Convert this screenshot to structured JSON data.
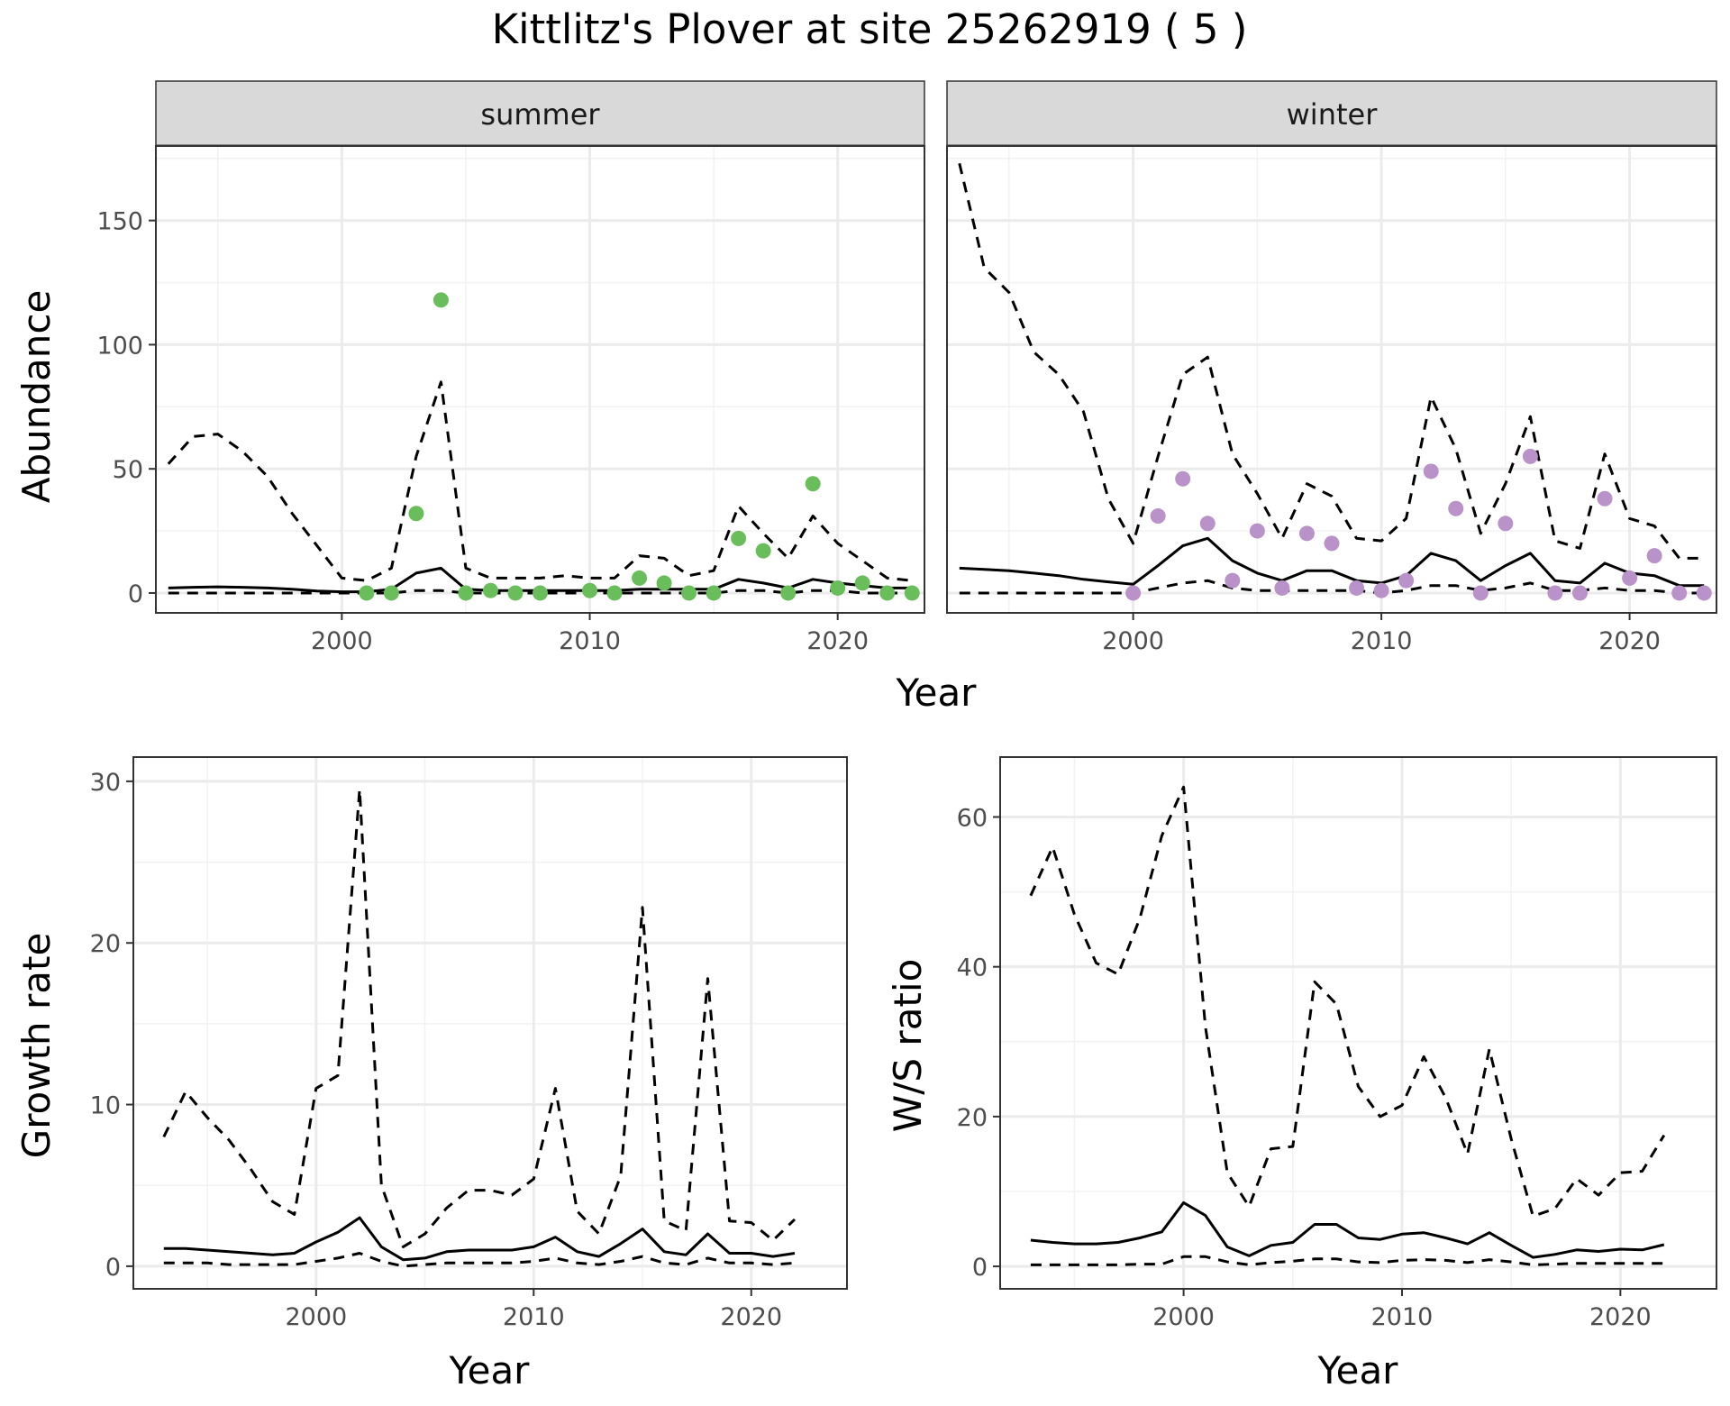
{
  "title": "Kittlitz's Plover at site 25262919 ( 5 )",
  "colors": {
    "summer": "#6abd5b",
    "winter": "#b892c8",
    "line": "#000000",
    "grid": "#ebebeb",
    "strip": "#d9d9d9"
  },
  "chart_data": [
    {
      "type": "line",
      "panel": "summer",
      "strip_label": "summer",
      "xlabel": "Year",
      "ylabel": "Abundance",
      "xlim": [
        1992.5,
        2023.5
      ],
      "ylim": [
        -8,
        180
      ],
      "xticks": [
        2000,
        2010,
        2020
      ],
      "yticks": [
        0,
        50,
        100,
        150
      ],
      "grid": true,
      "series": [
        {
          "role": "mean",
          "style": "solid",
          "x": [
            1993,
            1994,
            1995,
            1996,
            1997,
            1998,
            1999,
            2000,
            2001,
            2002,
            2003,
            2004,
            2005,
            2006,
            2007,
            2008,
            2009,
            2010,
            2011,
            2012,
            2013,
            2014,
            2015,
            2016,
            2017,
            2018,
            2019,
            2020,
            2021,
            2022,
            2023
          ],
          "y": [
            2,
            2.3,
            2.5,
            2.3,
            2,
            1.5,
            0.8,
            0.5,
            0.5,
            1.5,
            8,
            10,
            1.5,
            1,
            1,
            1,
            1,
            1,
            1,
            1.5,
            1.5,
            1.5,
            1.5,
            5.5,
            4,
            2,
            5.5,
            4,
            3,
            2,
            2
          ]
        },
        {
          "role": "lower",
          "style": "dashed",
          "x": [
            1993,
            1994,
            1995,
            1996,
            1997,
            1998,
            1999,
            2000,
            2001,
            2002,
            2003,
            2004,
            2005,
            2006,
            2007,
            2008,
            2009,
            2010,
            2011,
            2012,
            2013,
            2014,
            2015,
            2016,
            2017,
            2018,
            2019,
            2020,
            2021,
            2022,
            2023
          ],
          "y": [
            0,
            0,
            0,
            0,
            0,
            0,
            0,
            0,
            0,
            0,
            1,
            1,
            0,
            0,
            0,
            0,
            0,
            0,
            0,
            0,
            0,
            0,
            0,
            1,
            1,
            0,
            1,
            1,
            0,
            0,
            0
          ]
        },
        {
          "role": "upper",
          "style": "dashed",
          "x": [
            1993,
            1994,
            1995,
            1996,
            1997,
            1998,
            1999,
            2000,
            2001,
            2002,
            2003,
            2004,
            2005,
            2006,
            2007,
            2008,
            2009,
            2010,
            2011,
            2012,
            2013,
            2014,
            2015,
            2016,
            2017,
            2018,
            2019,
            2020,
            2021,
            2022,
            2023
          ],
          "y": [
            52,
            63,
            64,
            57,
            47,
            32,
            19,
            6,
            5,
            10,
            55,
            85,
            10,
            6,
            6,
            6,
            7,
            6,
            6,
            15,
            14,
            7,
            9,
            35,
            24,
            14,
            31,
            20,
            13,
            6,
            5
          ]
        }
      ],
      "points": {
        "x": [
          2001,
          2002,
          2003,
          2004,
          2005,
          2006,
          2007,
          2008,
          2010,
          2011,
          2012,
          2013,
          2014,
          2015,
          2016,
          2017,
          2018,
          2019,
          2020,
          2021,
          2022,
          2023
        ],
        "y": [
          0,
          0,
          32,
          118,
          0,
          1,
          0,
          0,
          1,
          0,
          6,
          4,
          0,
          0,
          22,
          17,
          0,
          44,
          2,
          4,
          0,
          0
        ]
      }
    },
    {
      "type": "line",
      "panel": "winter",
      "strip_label": "winter",
      "xlabel": "Year",
      "ylabel": "",
      "xlim": [
        1992.5,
        2023.5
      ],
      "ylim": [
        -8,
        180
      ],
      "xticks": [
        2000,
        2010,
        2020
      ],
      "yticks": [
        0,
        50,
        100,
        150
      ],
      "grid": true,
      "series": [
        {
          "role": "mean",
          "style": "solid",
          "x": [
            1993,
            1994,
            1995,
            1996,
            1997,
            1998,
            1999,
            2000,
            2001,
            2002,
            2003,
            2004,
            2005,
            2006,
            2007,
            2008,
            2009,
            2010,
            2011,
            2012,
            2013,
            2014,
            2015,
            2016,
            2017,
            2018,
            2019,
            2020,
            2021,
            2022,
            2023
          ],
          "y": [
            10,
            9.5,
            9,
            8,
            7,
            5.5,
            4.5,
            3.5,
            11,
            19,
            22,
            13,
            8,
            5,
            9,
            9,
            5,
            4,
            7,
            16,
            13,
            5,
            11,
            16,
            5,
            4,
            12,
            8,
            7,
            3,
            3
          ]
        },
        {
          "role": "lower",
          "style": "dashed",
          "x": [
            1993,
            1994,
            1995,
            1996,
            1997,
            1998,
            1999,
            2000,
            2001,
            2002,
            2003,
            2004,
            2005,
            2006,
            2007,
            2008,
            2009,
            2010,
            2011,
            2012,
            2013,
            2014,
            2015,
            2016,
            2017,
            2018,
            2019,
            2020,
            2021,
            2022,
            2023
          ],
          "y": [
            0,
            0,
            0,
            0,
            0,
            0,
            0,
            0,
            2,
            4,
            5,
            2,
            1,
            1,
            1,
            1,
            1,
            0,
            1,
            3,
            3,
            1,
            2,
            4,
            1,
            1,
            2,
            1,
            1,
            0,
            0
          ]
        },
        {
          "role": "upper",
          "style": "dashed",
          "x": [
            1993,
            1994,
            1995,
            1996,
            1997,
            1998,
            1999,
            2000,
            2001,
            2002,
            2003,
            2004,
            2005,
            2006,
            2007,
            2008,
            2009,
            2010,
            2011,
            2012,
            2013,
            2014,
            2015,
            2016,
            2017,
            2018,
            2019,
            2020,
            2021,
            2022,
            2023
          ],
          "y": [
            173,
            131,
            121,
            97,
            88,
            73,
            38,
            20,
            55,
            88,
            95,
            56,
            40,
            22,
            44,
            39,
            22,
            21,
            30,
            79,
            58,
            24,
            44,
            71,
            21,
            18,
            56,
            30,
            27,
            14,
            14
          ]
        }
      ],
      "points": {
        "x": [
          2000,
          2001,
          2002,
          2003,
          2004,
          2005,
          2006,
          2007,
          2008,
          2009,
          2010,
          2011,
          2012,
          2013,
          2014,
          2015,
          2016,
          2017,
          2018,
          2019,
          2020,
          2021,
          2022,
          2023
        ],
        "y": [
          0,
          31,
          46,
          28,
          5,
          25,
          2,
          24,
          20,
          2,
          1,
          5,
          49,
          34,
          0,
          28,
          55,
          0,
          0,
          38,
          6,
          15,
          0,
          0
        ]
      }
    },
    {
      "type": "line",
      "panel": "growth",
      "xlabel": "Year",
      "ylabel": "Growth rate",
      "xlim": [
        1991.6,
        2024.4
      ],
      "ylim": [
        -1.4,
        31.5
      ],
      "xticks": [
        2000,
        2010,
        2020
      ],
      "yticks": [
        0,
        10,
        20,
        30
      ],
      "grid": true,
      "series": [
        {
          "role": "mean",
          "style": "solid",
          "x": [
            1993,
            1994,
            1995,
            1996,
            1997,
            1998,
            1999,
            2000,
            2001,
            2002,
            2003,
            2004,
            2005,
            2006,
            2007,
            2008,
            2009,
            2010,
            2011,
            2012,
            2013,
            2014,
            2015,
            2016,
            2017,
            2018,
            2019,
            2020,
            2021,
            2022
          ],
          "y": [
            1.1,
            1.1,
            1.0,
            0.9,
            0.8,
            0.7,
            0.8,
            1.5,
            2.1,
            3.0,
            1.2,
            0.4,
            0.5,
            0.9,
            1.0,
            1.0,
            1.0,
            1.2,
            1.8,
            0.9,
            0.6,
            1.4,
            2.3,
            0.9,
            0.7,
            2.0,
            0.8,
            0.8,
            0.6,
            0.8
          ]
        },
        {
          "role": "lower",
          "style": "dashed",
          "x": [
            1993,
            1994,
            1995,
            1996,
            1997,
            1998,
            1999,
            2000,
            2001,
            2002,
            2003,
            2004,
            2005,
            2006,
            2007,
            2008,
            2009,
            2010,
            2011,
            2012,
            2013,
            2014,
            2015,
            2016,
            2017,
            2018,
            2019,
            2020,
            2021,
            2022
          ],
          "y": [
            0.2,
            0.2,
            0.2,
            0.1,
            0.1,
            0.1,
            0.1,
            0.3,
            0.5,
            0.8,
            0.3,
            0.0,
            0.1,
            0.2,
            0.2,
            0.2,
            0.2,
            0.3,
            0.5,
            0.2,
            0.1,
            0.3,
            0.6,
            0.2,
            0.1,
            0.5,
            0.2,
            0.2,
            0.1,
            0.2
          ]
        },
        {
          "role": "upper",
          "style": "dashed",
          "x": [
            1993,
            1994,
            1995,
            1996,
            1997,
            1998,
            1999,
            2000,
            2001,
            2002,
            2003,
            2004,
            2005,
            2006,
            2007,
            2008,
            2009,
            2010,
            2011,
            2012,
            2013,
            2014,
            2015,
            2016,
            2017,
            2018,
            2019,
            2020,
            2021,
            2022
          ],
          "y": [
            8,
            10.8,
            9.2,
            7.8,
            6,
            4,
            3.2,
            11,
            11.8,
            29.5,
            5,
            1.2,
            2,
            3.6,
            4.7,
            4.7,
            4.4,
            5.4,
            11,
            3.4,
            2,
            5.6,
            22.2,
            2.8,
            2.2,
            17.8,
            2.8,
            2.7,
            1.6,
            2.9
          ]
        }
      ]
    },
    {
      "type": "line",
      "panel": "ratio",
      "xlabel": "Year",
      "ylabel": "W/S ratio",
      "xlim": [
        1991.6,
        2024.4
      ],
      "ylim": [
        -3,
        68
      ],
      "xticks": [
        2000,
        2010,
        2020
      ],
      "yticks": [
        0,
        20,
        40,
        60
      ],
      "grid": true,
      "series": [
        {
          "role": "mean",
          "style": "solid",
          "x": [
            1993,
            1994,
            1995,
            1996,
            1997,
            1998,
            1999,
            2000,
            2001,
            2002,
            2003,
            2004,
            2005,
            2006,
            2007,
            2008,
            2009,
            2010,
            2011,
            2012,
            2013,
            2014,
            2015,
            2016,
            2017,
            2018,
            2019,
            2020,
            2021,
            2022
          ],
          "y": [
            3.5,
            3.2,
            3.0,
            3.0,
            3.2,
            3.8,
            4.6,
            8.5,
            6.8,
            2.6,
            1.4,
            2.8,
            3.2,
            5.6,
            5.6,
            3.8,
            3.6,
            4.3,
            4.5,
            3.8,
            3.0,
            4.5,
            2.8,
            1.2,
            1.6,
            2.2,
            2.0,
            2.3,
            2.2,
            2.9
          ]
        },
        {
          "role": "lower",
          "style": "dashed",
          "x": [
            1993,
            1994,
            1995,
            1996,
            1997,
            1998,
            1999,
            2000,
            2001,
            2002,
            2003,
            2004,
            2005,
            2006,
            2007,
            2008,
            2009,
            2010,
            2011,
            2012,
            2013,
            2014,
            2015,
            2016,
            2017,
            2018,
            2019,
            2020,
            2021,
            2022
          ],
          "y": [
            0.2,
            0.2,
            0.2,
            0.2,
            0.2,
            0.3,
            0.3,
            1.3,
            1.3,
            0.6,
            0.2,
            0.5,
            0.7,
            1.0,
            1.0,
            0.6,
            0.5,
            0.8,
            0.9,
            0.8,
            0.5,
            0.9,
            0.6,
            0.2,
            0.3,
            0.4,
            0.4,
            0.4,
            0.4,
            0.4
          ]
        },
        {
          "role": "upper",
          "style": "dashed",
          "x": [
            1993,
            1994,
            1995,
            1996,
            1997,
            1998,
            1999,
            2000,
            2001,
            2002,
            2003,
            2004,
            2005,
            2006,
            2007,
            2008,
            2009,
            2010,
            2011,
            2012,
            2013,
            2014,
            2015,
            2016,
            2017,
            2018,
            2019,
            2020,
            2021,
            2022
          ],
          "y": [
            49.5,
            56,
            47,
            40.5,
            39,
            46.5,
            57.5,
            64,
            32,
            12.5,
            8,
            15.7,
            16,
            38,
            35,
            24,
            20,
            21.5,
            28,
            22.5,
            15,
            29,
            17,
            6.7,
            7.7,
            11.7,
            9.5,
            12.5,
            12.7,
            17.5
          ]
        }
      ]
    }
  ]
}
